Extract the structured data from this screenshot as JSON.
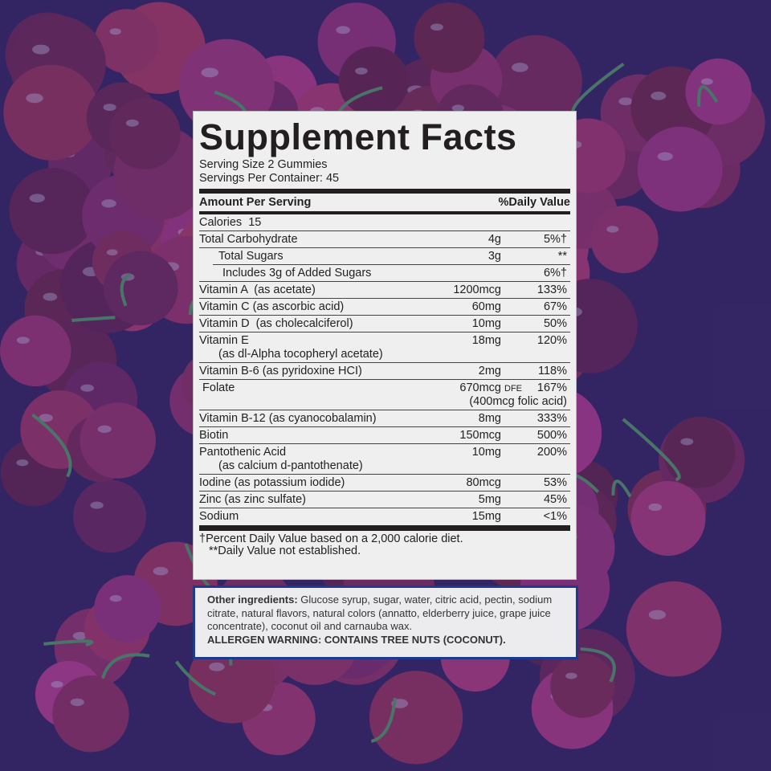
{
  "colors": {
    "background": "#3a1f55",
    "cherry": "#6a1838",
    "panel": "#efeff0",
    "border_blue": "#1e3a8a"
  },
  "facts": {
    "title": "Supplement Facts",
    "serving_size": "Serving Size 2 Gummies",
    "servings_per_container": "Servings Per Container: 45",
    "amount_header": "Amount Per Serving",
    "dv_header": "%Daily Value",
    "rows": [
      {
        "name": "Calories  15",
        "amount": "",
        "dv": ""
      },
      {
        "name": "Total Carbohydrate",
        "amount": "4g",
        "dv": "5%†"
      },
      {
        "name": "Total Sugars",
        "amount": "3g",
        "dv": "**",
        "indent": 1
      },
      {
        "name": "Includes 3g of Added Sugars",
        "amount": "",
        "dv": "6%†",
        "indent": 2
      },
      {
        "name": "Vitamin A  (as acetate)",
        "amount": "1200mcg",
        "dv": "133%"
      },
      {
        "name": "Vitamin C (as ascorbic acid)",
        "amount": "60mg",
        "dv": "67%"
      },
      {
        "name": "Vitamin D  (as cholecalciferol)",
        "amount": "10mg",
        "dv": "50%"
      },
      {
        "name": "Vitamin E",
        "sub": "(as dl-Alpha tocopheryl acetate)",
        "amount": "18mg",
        "dv": "120%"
      },
      {
        "name": "Vitamin B-6 (as pyridoxine HCI)",
        "amount": "2mg",
        "dv": "118%"
      },
      {
        "name": " Folate",
        "amount": "670mcg",
        "unit": "DFE",
        "dv": "167%",
        "extra": "(400mcg folic acid)"
      },
      {
        "name": "Vitamin B-12 (as cyanocobalamin)",
        "amount": "8mg",
        "dv": "333%"
      },
      {
        "name": "Biotin",
        "amount": "150mcg",
        "dv": "500%"
      },
      {
        "name": "Pantothenic Acid",
        "sub": "(as calcium d-pantothenate)",
        "amount": "10mg",
        "dv": "200%"
      },
      {
        "name": "Iodine (as potassium iodide)",
        "amount": "80mcg",
        "dv": "53%"
      },
      {
        "name": "Zinc (as zinc sulfate)",
        "amount": "5mg",
        "dv": "45%"
      },
      {
        "name": "Sodium",
        "amount": "15mg",
        "dv": "<1%"
      }
    ],
    "footnote_1": "†Percent Daily Value based on a 2,000 calorie diet.",
    "footnote_2": "**Daily Value not established."
  },
  "other": {
    "ingredients_label": "Other ingredients:",
    "ingredients_text": " Glucose syrup, sugar, water, citric acid, pectin, sodium citrate, natural flavors, natural colors (annatto, elderberry juice, grape juice concentrate), coconut oil and carnauba wax.",
    "allergen": "ALLERGEN WARNING: CONTAINS TREE NUTS (COCONUT)."
  }
}
